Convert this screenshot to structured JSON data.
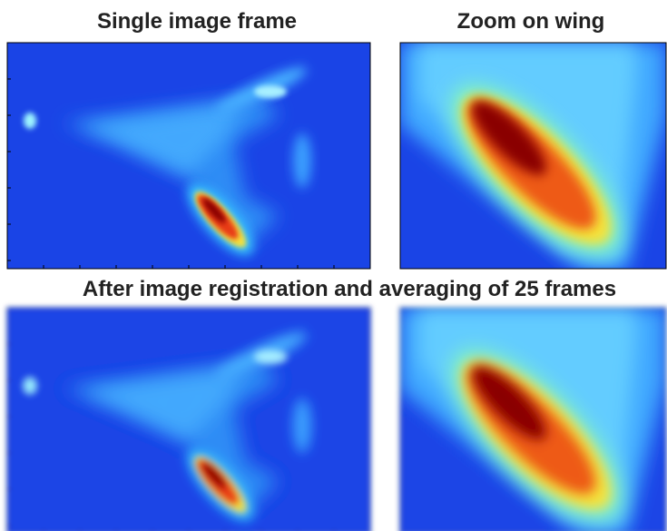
{
  "panels": {
    "top_left_title": "Single image frame",
    "top_right_title": "Zoom on wing",
    "middle_title": "After image registration and averaging of 25 frames"
  }
}
